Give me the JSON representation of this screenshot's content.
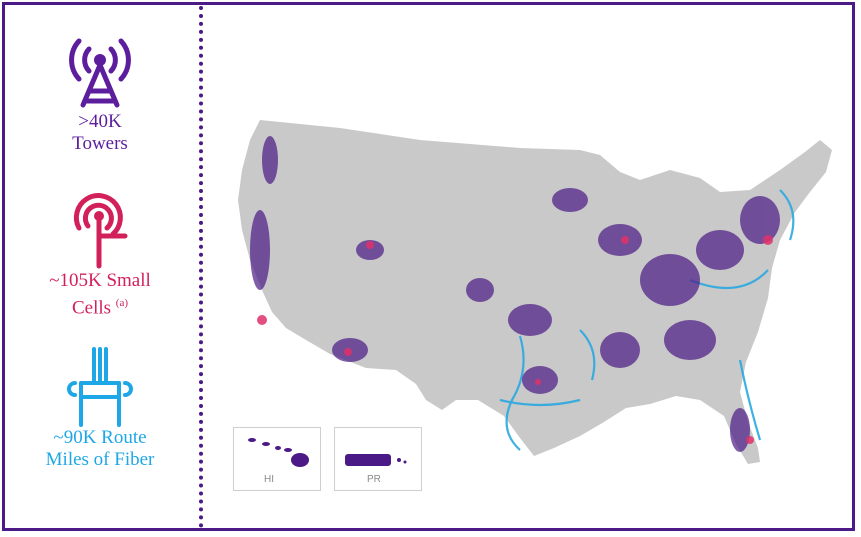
{
  "legend": {
    "towers": {
      "line1": ">40K",
      "line2": "Towers",
      "color": "#5c1e9c",
      "icon": "cell-tower-icon"
    },
    "small_cells": {
      "line1": "~105K Small",
      "line2": "Cells",
      "footnote": "(a)",
      "color": "#d2205b",
      "icon": "small-cell-icon"
    },
    "fiber": {
      "line1": "~90K Route",
      "line2": "Miles of Fiber",
      "color": "#1ea7e6",
      "icon": "fiber-cable-icon"
    }
  },
  "map": {
    "land_color": "#c9c9c9",
    "tower_color": "#4b1a86",
    "small_cell_color": "#e0306a",
    "fiber_color": "#2aa8e0",
    "insets": {
      "hawaii": "HI",
      "puerto_rico": "PR"
    }
  }
}
